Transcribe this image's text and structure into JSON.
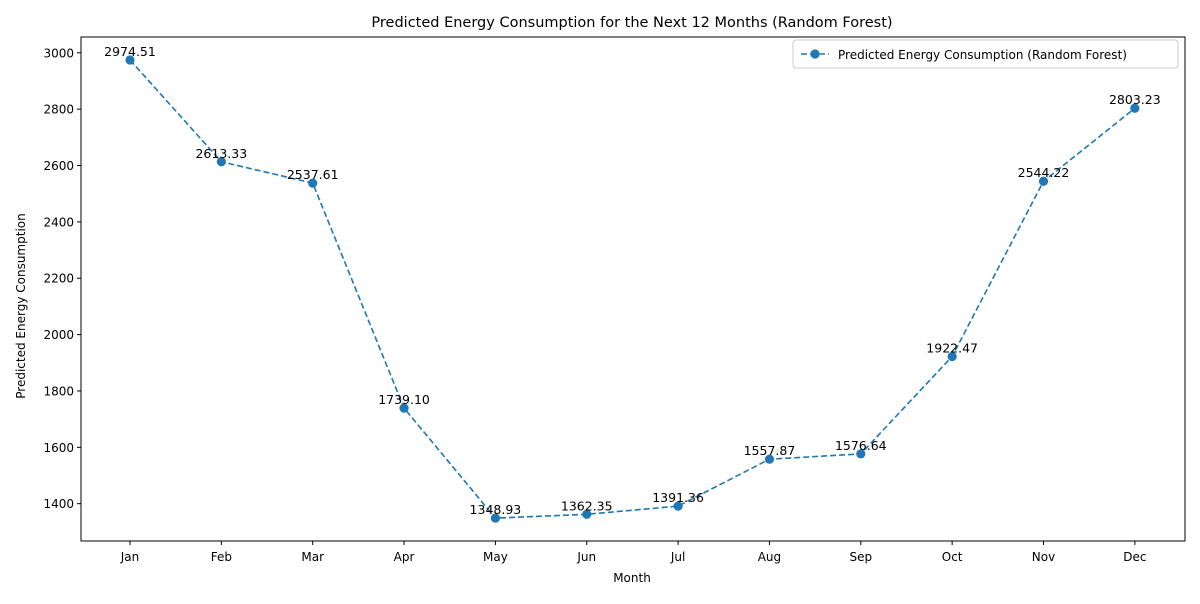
{
  "chart_data": {
    "type": "line",
    "title": "Predicted Energy Consumption for the Next 12 Months (Random Forest)",
    "xlabel": "Month",
    "ylabel": "Predicted Energy Consumption",
    "categories": [
      "Jan",
      "Feb",
      "Mar",
      "Apr",
      "May",
      "Jun",
      "Jul",
      "Aug",
      "Sep",
      "Oct",
      "Nov",
      "Dec"
    ],
    "series": [
      {
        "name": "Predicted Energy Consumption (Random Forest)",
        "values": [
          2974.51,
          2613.33,
          2537.61,
          1739.1,
          1348.93,
          1362.35,
          1391.36,
          1557.87,
          1576.64,
          1922.47,
          2544.22,
          2803.23
        ],
        "data_labels": [
          "2974.51",
          "2613.33",
          "2537.61",
          "1739.10",
          "1348.93",
          "1362.35",
          "1391.36",
          "1557.87",
          "1576.64",
          "1922.47",
          "2544.22",
          "2803.23"
        ],
        "color": "#1f77b4",
        "line_style": "dashed",
        "marker": "circle"
      }
    ],
    "yticks": [
      1400,
      1600,
      1800,
      2000,
      2200,
      2400,
      2600,
      2800,
      3000
    ],
    "ylim": [
      1267.6,
      3056.0
    ],
    "grid": false,
    "legend_position": "top-right"
  }
}
